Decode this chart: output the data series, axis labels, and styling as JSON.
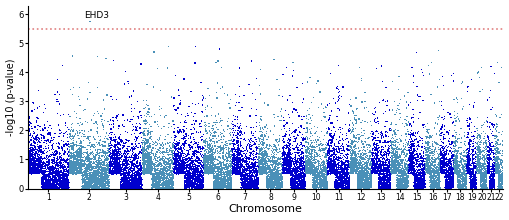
{
  "title": "",
  "xlabel": "Chromosome",
  "ylabel": "-log10 (p-value)",
  "chromosomes": [
    1,
    2,
    3,
    4,
    5,
    6,
    7,
    8,
    9,
    10,
    11,
    12,
    13,
    14,
    15,
    16,
    17,
    18,
    19,
    20,
    21,
    22
  ],
  "chr_labels": [
    "1",
    "2",
    "3",
    "4",
    "5",
    "6",
    "7",
    "8",
    "9",
    "10",
    "11",
    "12",
    "13",
    "14",
    "15",
    "16",
    "17",
    "18",
    "19",
    "20",
    "21",
    "22"
  ],
  "color_odd": "#0000CD",
  "color_even": "#4A90B8",
  "significance_line": 5.5,
  "sig_line_color": "#E08080",
  "ylim": [
    0,
    6.3
  ],
  "annotation_gene": "EHD3",
  "seed": 42
}
